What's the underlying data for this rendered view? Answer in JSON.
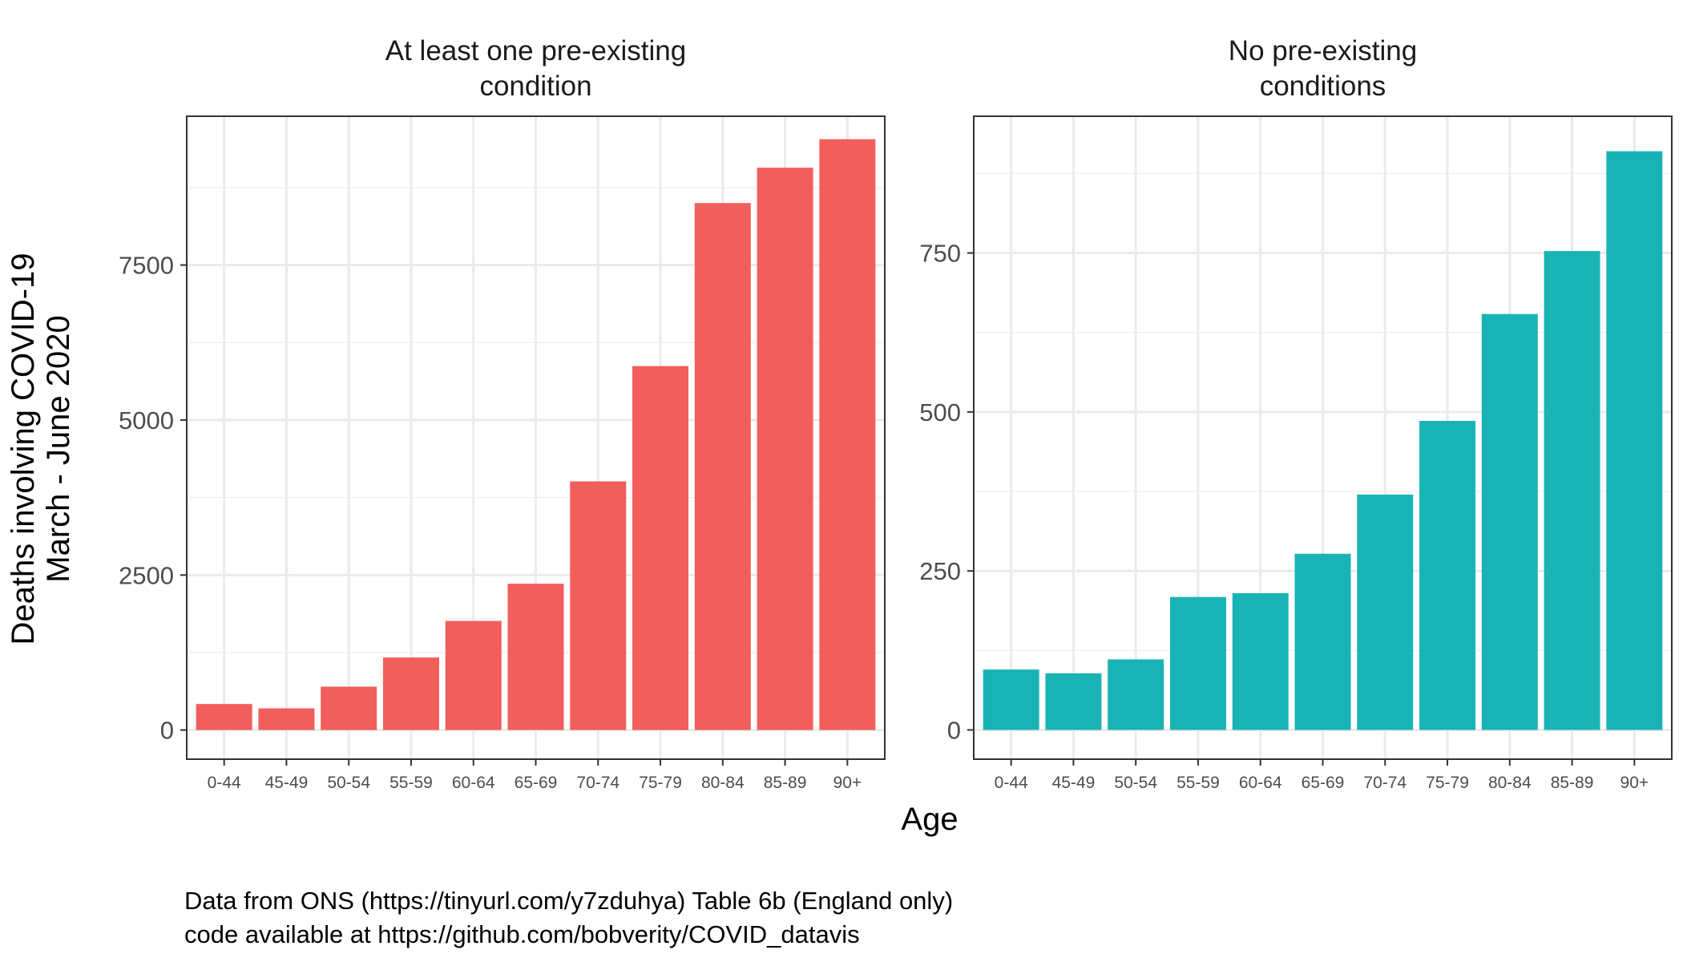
{
  "chart_data": {
    "type": "bar",
    "facet": "columns",
    "categories": [
      "0-44",
      "45-49",
      "50-54",
      "55-59",
      "60-64",
      "65-69",
      "70-74",
      "75-79",
      "80-84",
      "85-89",
      "90+"
    ],
    "xlabel": "Age",
    "ylabel": [
      "Deaths involving COVID-19",
      "March - June 2020"
    ],
    "grid": true,
    "legend": "none",
    "panels": [
      {
        "title": [
          "At least one pre-existing",
          "condition"
        ],
        "color": "#F25E5B",
        "values": [
          420,
          350,
          700,
          1170,
          1760,
          2360,
          4010,
          5870,
          8500,
          9070,
          9530
        ],
        "ylim": [
          -470,
          9900
        ],
        "yticks": [
          0,
          2500,
          5000,
          7500
        ]
      },
      {
        "title": [
          "No pre-existing",
          "conditions"
        ],
        "color": "#1AB3B5",
        "values": [
          95,
          89,
          111,
          209,
          215,
          277,
          370,
          486,
          654,
          753,
          910
        ],
        "ylim": [
          -46,
          965
        ],
        "yticks": [
          0,
          250,
          500,
          750
        ]
      }
    ]
  },
  "caption": [
    "Data from ONS (https://tinyurl.com/y7zduhya) Table 6b (England only)",
    "code available at https://github.com/bobverity/COVID_datavis"
  ]
}
